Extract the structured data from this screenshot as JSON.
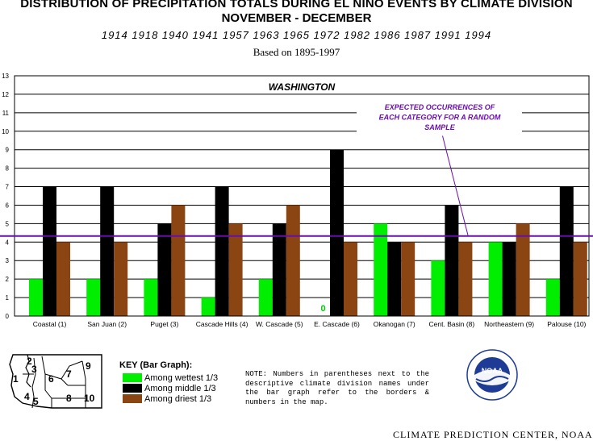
{
  "header": {
    "title_line1": "DISTRIBUTION OF PRECIPITATION TOTALS DURING EL NINO EVENTS BY CLIMATE DIVISION",
    "title_line2": "NOVEMBER - DECEMBER",
    "years": "1914 1918 1940 1941 1957 1963 1965 1972 1982 1986 1987 1991 1994",
    "based_on": "Based on 1895-1997"
  },
  "chart_data": {
    "type": "bar",
    "title": "WASHINGTON",
    "categories": [
      "Coastal (1)",
      "San Juan (2)",
      "Puget (3)",
      "Cascade Hills (4)",
      "W. Cascade (5)",
      "E. Cascade (6)",
      "Okanogan (7)",
      "Cent. Basin (8)",
      "Northeastern (9)",
      "Palouse (10)"
    ],
    "series": [
      {
        "name": "Among wettest 1/3",
        "color": "#00ee00",
        "values": [
          2,
          2,
          2,
          1,
          2,
          0,
          5,
          3,
          4,
          2
        ]
      },
      {
        "name": "Among middle 1/3",
        "color": "#000000",
        "values": [
          7,
          7,
          5,
          7,
          5,
          9,
          4,
          6,
          4,
          7
        ]
      },
      {
        "name": "Among driest 1/3",
        "color": "#8b4513",
        "values": [
          4,
          4,
          6,
          5,
          6,
          4,
          4,
          4,
          5,
          4
        ]
      }
    ],
    "ylim": [
      0,
      13
    ],
    "yticks": [
      "0",
      "1",
      "2",
      "3",
      "4",
      "5",
      "6",
      "7",
      "8",
      "9",
      "10",
      "11",
      "12",
      "13"
    ],
    "grid": true,
    "reference_line": {
      "value": 4.33,
      "color": "#6a0dad"
    },
    "zero_label": "0",
    "annotation": [
      "EXPECTED OCCURRENCES OF",
      "EACH CATEGORY FOR A RANDOM",
      "SAMPLE"
    ]
  },
  "key": {
    "title": "KEY (Bar Graph):",
    "items": [
      {
        "label": "Among wettest 1/3",
        "color": "#00ee00"
      },
      {
        "label": "Among middle 1/3",
        "color": "#000000"
      },
      {
        "label": "Among driest 1/3",
        "color": "#8b4513"
      }
    ]
  },
  "note": "NOTE:  Numbers in parentheses next to the descriptive climate division names under the bar graph refer to the borders & numbers in the map.",
  "map": {
    "numbers": [
      "1",
      "2",
      "3",
      "4",
      "5",
      "6",
      "7",
      "8",
      "9",
      "10"
    ]
  },
  "logo": {
    "text": "NOAA"
  },
  "footer": "CLIMATE PREDICTION CENTER, NOAA"
}
